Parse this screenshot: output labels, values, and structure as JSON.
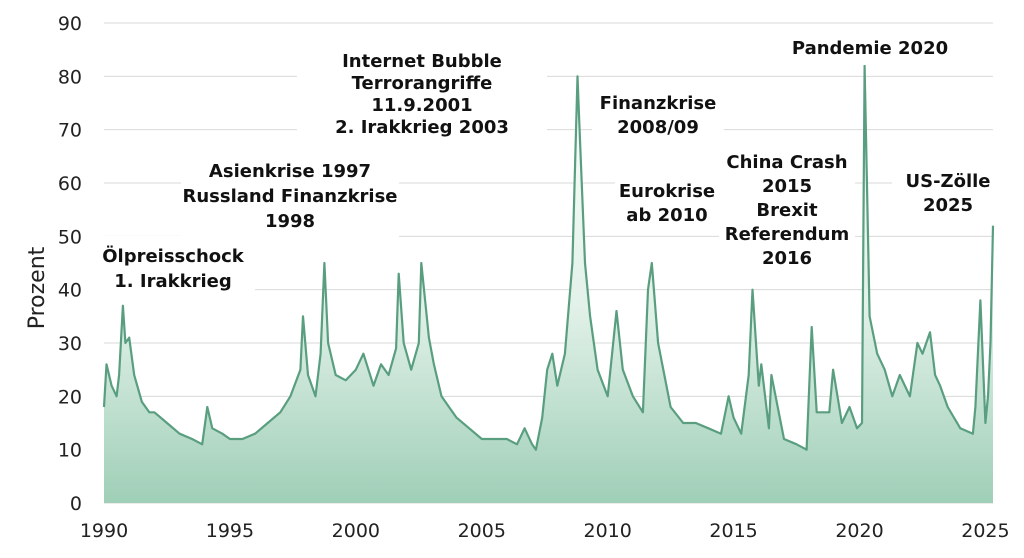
{
  "chart_data": {
    "type": "area",
    "title": "",
    "xlabel": "",
    "ylabel": "Prozent",
    "xlim": [
      1990,
      2025.3
    ],
    "ylim": [
      0,
      90
    ],
    "y_ticks": [
      "0",
      "10",
      "20",
      "30",
      "40",
      "50",
      "60",
      "70",
      "80",
      "90"
    ],
    "x_ticks": [
      "1990",
      "1995",
      "2000",
      "2005",
      "2010",
      "2015",
      "2020",
      "2025"
    ],
    "grid": true,
    "legend": "none",
    "line_color": "#5a9e80",
    "fill_color": "#b6dbc8",
    "series": [
      {
        "x": [
          1990.0,
          1990.1,
          1990.3,
          1990.5,
          1990.6,
          1990.75,
          1990.85,
          1991.0,
          1991.2,
          1991.5,
          1991.8,
          1992.0,
          1992.5,
          1993.0,
          1993.5,
          1993.9,
          1994.1,
          1994.3,
          1994.7,
          1995.0,
          1995.5,
          1996.0,
          1996.5,
          1997.0,
          1997.4,
          1997.8,
          1997.9,
          1998.1,
          1998.4,
          1998.6,
          1998.75,
          1998.9,
          1999.2,
          1999.6,
          2000.0,
          2000.3,
          2000.7,
          2001.0,
          2001.3,
          2001.6,
          2001.7,
          2001.9,
          2002.2,
          2002.5,
          2002.6,
          2002.75,
          2002.9,
          2003.1,
          2003.4,
          2003.7,
          2004.0,
          2004.5,
          2005.0,
          2005.5,
          2006.0,
          2006.4,
          2006.7,
          2007.0,
          2007.15,
          2007.4,
          2007.6,
          2007.8,
          2008.0,
          2008.3,
          2008.6,
          2008.8,
          2008.9,
          2009.1,
          2009.3,
          2009.6,
          2010.0,
          2010.35,
          2010.6,
          2011.0,
          2011.4,
          2011.6,
          2011.75,
          2012.0,
          2012.5,
          2013.0,
          2013.5,
          2014.0,
          2014.5,
          2014.8,
          2015.0,
          2015.3,
          2015.6,
          2015.75,
          2016.0,
          2016.1,
          2016.4,
          2016.5,
          2017.0,
          2017.5,
          2017.9,
          2018.1,
          2018.3,
          2018.8,
          2018.95,
          2019.3,
          2019.6,
          2019.9,
          2020.1,
          2020.2,
          2020.4,
          2020.7,
          2021.0,
          2021.3,
          2021.6,
          2022.0,
          2022.3,
          2022.5,
          2022.8,
          2023.0,
          2023.2,
          2023.5,
          2024.0,
          2024.5,
          2024.6,
          2024.8,
          2025.0,
          2025.1,
          2025.2,
          2025.3
        ],
        "values": [
          18,
          26,
          22,
          20,
          24,
          37,
          30,
          31,
          24,
          19,
          17,
          17,
          15,
          13,
          12,
          11,
          18,
          14,
          13,
          12,
          12,
          13,
          15,
          17,
          20,
          25,
          35,
          24,
          20,
          28,
          45,
          30,
          24,
          23,
          25,
          28,
          22,
          26,
          24,
          29,
          43,
          30,
          25,
          30,
          45,
          38,
          31,
          26,
          20,
          18,
          16,
          14,
          12,
          12,
          12,
          11,
          14,
          11,
          10,
          16,
          25,
          28,
          22,
          28,
          45,
          80,
          68,
          45,
          35,
          25,
          20,
          36,
          25,
          20,
          17,
          40,
          45,
          30,
          18,
          15,
          15,
          14,
          13,
          20,
          16,
          13,
          24,
          40,
          22,
          26,
          14,
          24,
          12,
          11,
          10,
          33,
          17,
          17,
          25,
          15,
          18,
          14,
          15,
          82,
          35,
          28,
          25,
          20,
          24,
          20,
          30,
          28,
          32,
          24,
          22,
          18,
          14,
          13,
          18,
          38,
          15,
          20,
          30,
          52
        ]
      }
    ],
    "annotations": [
      {
        "lines": [
          "Ölpreisschock",
          "1. Irakkrieg"
        ]
      },
      {
        "lines": [
          "Asienkrise 1997",
          "Russland Finanzkrise",
          "1998"
        ]
      },
      {
        "lines": [
          "Internet Bubble",
          "Terrorangriffe",
          "11.9.2001",
          "2. Irakkrieg 2003"
        ]
      },
      {
        "lines": [
          "Finanzkrise",
          "2008/09"
        ]
      },
      {
        "lines": [
          "Eurokrise",
          "ab 2010"
        ]
      },
      {
        "lines": [
          "China Crash",
          "2015",
          "Brexit",
          "Referendum",
          "2016"
        ]
      },
      {
        "lines": [
          "Pandemie 2020"
        ]
      },
      {
        "lines": [
          "US-Zölle",
          "2025"
        ]
      }
    ]
  }
}
